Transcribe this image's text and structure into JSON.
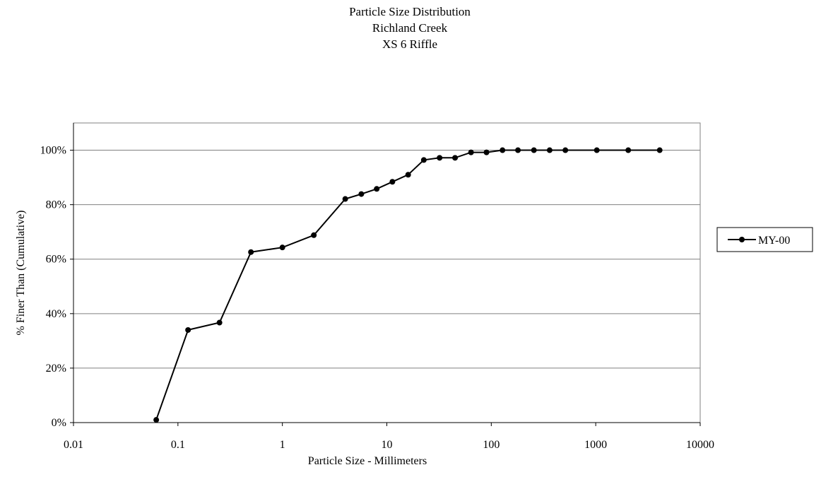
{
  "chart_data": {
    "type": "line",
    "title_lines": [
      "Particle Size Distribution",
      "Richland Creek",
      "XS 6 Riffle"
    ],
    "xlabel": "Particle Size - Millimeters",
    "ylabel": "% Finer Than (Cumulative)",
    "x_scale": "log",
    "xlim": [
      0.01,
      10000
    ],
    "ylim": [
      0,
      110
    ],
    "x_ticks": [
      0.01,
      0.1,
      1,
      10,
      100,
      1000,
      10000
    ],
    "x_tick_labels": [
      "0.01",
      "0.1",
      "1",
      "10",
      "100",
      "1000",
      "10000"
    ],
    "y_ticks": [
      0,
      20,
      40,
      60,
      80,
      100
    ],
    "y_tick_labels": [
      "0%",
      "20%",
      "40%",
      "60%",
      "80%",
      "100%"
    ],
    "grid": {
      "horizontal": true,
      "vertical": false
    },
    "legend_position": "right",
    "series": [
      {
        "name": "MY-00",
        "color": "#000000",
        "marker": "circle",
        "points": [
          {
            "x": 0.062,
            "y": 1
          },
          {
            "x": 0.125,
            "y": 34
          },
          {
            "x": 0.25,
            "y": 36.7
          },
          {
            "x": 0.5,
            "y": 62.6
          },
          {
            "x": 1,
            "y": 64.3
          },
          {
            "x": 2,
            "y": 68.8
          },
          {
            "x": 4,
            "y": 82.1
          },
          {
            "x": 5.7,
            "y": 83.9
          },
          {
            "x": 8,
            "y": 85.8
          },
          {
            "x": 11.3,
            "y": 88.4
          },
          {
            "x": 16,
            "y": 91
          },
          {
            "x": 22.6,
            "y": 96.4
          },
          {
            "x": 32,
            "y": 97.2
          },
          {
            "x": 45,
            "y": 97.2
          },
          {
            "x": 64,
            "y": 99.2
          },
          {
            "x": 90,
            "y": 99.2
          },
          {
            "x": 128,
            "y": 100
          },
          {
            "x": 180,
            "y": 100
          },
          {
            "x": 256,
            "y": 100
          },
          {
            "x": 362,
            "y": 100
          },
          {
            "x": 512,
            "y": 100
          },
          {
            "x": 1024,
            "y": 100
          },
          {
            "x": 2048,
            "y": 100
          },
          {
            "x": 4096,
            "y": 100
          }
        ]
      }
    ]
  }
}
